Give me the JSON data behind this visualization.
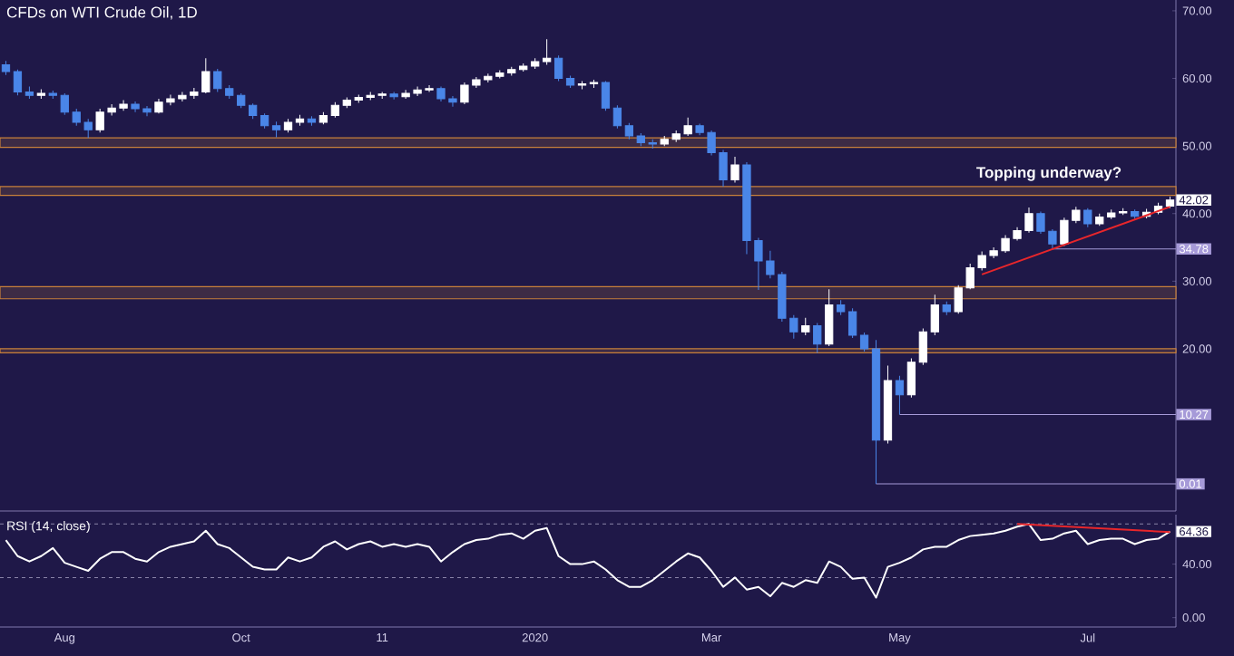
{
  "chart_data": [
    {
      "type": "candlestick",
      "title": "CFDs on WTI Crude Oil, 1D",
      "categories": [
        null,
        null,
        null,
        null,
        null,
        null,
        null,
        null,
        null,
        null,
        null,
        null,
        null,
        null,
        null,
        null,
        null,
        null,
        null,
        null,
        null,
        null,
        null,
        null,
        null,
        null,
        null,
        null,
        null,
        null,
        null,
        null,
        null,
        null,
        null,
        null,
        null,
        null,
        null,
        null,
        null,
        null,
        null,
        null,
        null,
        null,
        null,
        null,
        null,
        null,
        null,
        null,
        null,
        null,
        null,
        null,
        null,
        null,
        null,
        null,
        null,
        null,
        null,
        null,
        null,
        null,
        null,
        null,
        null,
        null,
        null,
        null,
        null,
        null,
        null,
        null,
        null,
        null,
        null,
        null,
        null,
        null,
        null,
        null,
        null,
        null,
        null,
        null,
        null,
        null,
        null,
        null,
        null,
        null,
        null,
        null,
        null,
        null,
        null,
        null
      ],
      "ohlc": [
        [
          62,
          62.6,
          60.5,
          61
        ],
        [
          61,
          61.3,
          57.5,
          58
        ],
        [
          58,
          58.8,
          57,
          57.5
        ],
        [
          57.5,
          58.4,
          57,
          57.8
        ],
        [
          57.8,
          58.2,
          57,
          57.5
        ],
        [
          57.5,
          57.8,
          54.6,
          55
        ],
        [
          55,
          55.5,
          53,
          53.5
        ],
        [
          53.5,
          54,
          51.2,
          52.4
        ],
        [
          52.4,
          55.5,
          52,
          55
        ],
        [
          55,
          56.2,
          54.5,
          55.6
        ],
        [
          55.6,
          56.8,
          55.2,
          56.2
        ],
        [
          56.2,
          56.6,
          55,
          55.5
        ],
        [
          55.5,
          55.9,
          54.4,
          55
        ],
        [
          55,
          57,
          54.8,
          56.5
        ],
        [
          56.5,
          57.6,
          56,
          57
        ],
        [
          57,
          58,
          56.6,
          57.5
        ],
        [
          57.5,
          58.6,
          57,
          58
        ],
        [
          58,
          63,
          57.8,
          61
        ],
        [
          61,
          61.4,
          58,
          58.5
        ],
        [
          58.5,
          59,
          57,
          57.5
        ],
        [
          57.5,
          57.8,
          55.6,
          56
        ],
        [
          56,
          56.3,
          54,
          54.5
        ],
        [
          54.5,
          54.8,
          52.6,
          53
        ],
        [
          53,
          53.6,
          51.3,
          52.4
        ],
        [
          52.4,
          54,
          52,
          53.5
        ],
        [
          53.5,
          54.6,
          53,
          54
        ],
        [
          54,
          54.4,
          53,
          53.5
        ],
        [
          53.5,
          55,
          53.2,
          54.5
        ],
        [
          54.5,
          56.5,
          54.2,
          56
        ],
        [
          56,
          57.2,
          55.6,
          56.8
        ],
        [
          56.8,
          57.6,
          56.4,
          57.2
        ],
        [
          57.2,
          58,
          56.8,
          57.5
        ],
        [
          57.5,
          58,
          57,
          57.7
        ],
        [
          57.7,
          58,
          56.9,
          57.3
        ],
        [
          57.3,
          58.3,
          57,
          57.8
        ],
        [
          57.8,
          58.8,
          57.4,
          58.3
        ],
        [
          58.3,
          59,
          58,
          58.5
        ],
        [
          58.5,
          58.8,
          56.6,
          57
        ],
        [
          57,
          57.4,
          55.8,
          56.5
        ],
        [
          56.5,
          59.4,
          56.2,
          59
        ],
        [
          59,
          60.2,
          58.6,
          59.8
        ],
        [
          59.8,
          60.7,
          59.4,
          60.3
        ],
        [
          60.3,
          61.2,
          60,
          60.8
        ],
        [
          60.8,
          61.7,
          60.4,
          61.3
        ],
        [
          61.3,
          62.2,
          61,
          61.8
        ],
        [
          61.8,
          63,
          61.4,
          62.5
        ],
        [
          62.5,
          65.8,
          62,
          63
        ],
        [
          63,
          63.4,
          59.6,
          60
        ],
        [
          60,
          60.4,
          58.6,
          59
        ],
        [
          59,
          59.6,
          58.4,
          59.2
        ],
        [
          59.2,
          59.8,
          58.6,
          59.4
        ],
        [
          59.4,
          59.6,
          55.2,
          55.6
        ],
        [
          55.6,
          56,
          52.6,
          53
        ],
        [
          53,
          53.4,
          51,
          51.5
        ],
        [
          51.5,
          51.9,
          50,
          50.5
        ],
        [
          50.5,
          51,
          49.6,
          50.3
        ],
        [
          50.3,
          51.5,
          50,
          51
        ],
        [
          51,
          52.3,
          50.6,
          51.8
        ],
        [
          51.8,
          54.2,
          51.5,
          53
        ],
        [
          53,
          53.3,
          51.6,
          52
        ],
        [
          52,
          52.3,
          48.6,
          49
        ],
        [
          49,
          49.4,
          44,
          45
        ],
        [
          45,
          48.4,
          44.6,
          47.2
        ],
        [
          47.2,
          47.6,
          34,
          36
        ],
        [
          36,
          36.4,
          28.7,
          33
        ],
        [
          33,
          34.5,
          30.4,
          31
        ],
        [
          31,
          31.4,
          24,
          24.5
        ],
        [
          24.5,
          25,
          21.5,
          22.5
        ],
        [
          22.5,
          24.6,
          22,
          23.4
        ],
        [
          23.4,
          23.8,
          19.4,
          20.7
        ],
        [
          20.7,
          28.8,
          20.4,
          26.5
        ],
        [
          26.5,
          27.2,
          25,
          25.5
        ],
        [
          25.5,
          26,
          21.6,
          22
        ],
        [
          22,
          22.4,
          19.6,
          20
        ],
        [
          20,
          21.3,
          0.01,
          6.5
        ],
        [
          6.5,
          17.5,
          6,
          15.3
        ],
        [
          15.3,
          16,
          10.27,
          13.2
        ],
        [
          13.2,
          18.6,
          12.8,
          18
        ],
        [
          18,
          23,
          17.6,
          22.5
        ],
        [
          22.5,
          28,
          22,
          26.5
        ],
        [
          26.5,
          27,
          25,
          25.5
        ],
        [
          25.5,
          29.4,
          25.2,
          29
        ],
        [
          29,
          32.6,
          28.8,
          32
        ],
        [
          32,
          34.4,
          31.6,
          33.8
        ],
        [
          33.8,
          35,
          33.4,
          34.5
        ],
        [
          34.5,
          36.8,
          34.2,
          36.3
        ],
        [
          36.3,
          38,
          36,
          37.5
        ],
        [
          37.5,
          40.9,
          37.2,
          40
        ],
        [
          40,
          40.3,
          37,
          37.4
        ],
        [
          37.4,
          37.7,
          34.78,
          35.5
        ],
        [
          35.5,
          39.4,
          35.2,
          39
        ],
        [
          39,
          41,
          38.6,
          40.5
        ],
        [
          40.5,
          40.8,
          38,
          38.5
        ],
        [
          38.5,
          40,
          38.2,
          39.5
        ],
        [
          39.5,
          40.6,
          39.2,
          40.1
        ],
        [
          40.1,
          40.8,
          39.8,
          40.3
        ],
        [
          40.3,
          40.6,
          39.2,
          39.6
        ],
        [
          39.6,
          40.7,
          39.3,
          40.2
        ],
        [
          40.2,
          41.6,
          39.9,
          41.1
        ],
        [
          41.1,
          42.5,
          40.8,
          42.02
        ]
      ],
      "colors": [
        "#4a86e8",
        "#4a86e8",
        "#4a86e8",
        "#ffffff",
        "#4a86e8",
        "#4a86e8",
        "#4a86e8",
        "#4a86e8",
        "#ffffff",
        "#ffffff",
        "#ffffff",
        "#4a86e8",
        "#4a86e8",
        "#ffffff",
        "#ffffff",
        "#ffffff",
        "#ffffff",
        "#ffffff",
        "#4a86e8",
        "#4a86e8",
        "#4a86e8",
        "#4a86e8",
        "#4a86e8",
        "#4a86e8",
        "#ffffff",
        "#ffffff",
        "#4a86e8",
        "#ffffff",
        "#ffffff",
        "#ffffff",
        "#ffffff",
        "#ffffff",
        "#ffffff",
        "#4a86e8",
        "#ffffff",
        "#ffffff",
        "#ffffff",
        "#4a86e8",
        "#4a86e8",
        "#ffffff",
        "#ffffff",
        "#ffffff",
        "#ffffff",
        "#ffffff",
        "#ffffff",
        "#ffffff",
        "#ffffff",
        "#4a86e8",
        "#4a86e8",
        "#ffffff",
        "#ffffff",
        "#4a86e8",
        "#4a86e8",
        "#4a86e8",
        "#4a86e8",
        "#4a86e8",
        "#ffffff",
        "#ffffff",
        "#ffffff",
        "#4a86e8",
        "#4a86e8",
        "#4a86e8",
        "#ffffff",
        "#4a86e8",
        "#4a86e8",
        "#4a86e8",
        "#4a86e8",
        "#4a86e8",
        "#ffffff",
        "#4a86e8",
        "#ffffff",
        "#4a86e8",
        "#4a86e8",
        "#4a86e8",
        "#4a86e8",
        "#ffffff",
        "#4a86e8",
        "#ffffff",
        "#ffffff",
        "#ffffff",
        "#4a86e8",
        "#ffffff",
        "#ffffff",
        "#ffffff",
        "#ffffff",
        "#ffffff",
        "#ffffff",
        "#ffffff",
        "#4a86e8",
        "#4a86e8",
        "#ffffff",
        "#ffffff",
        "#4a86e8",
        "#ffffff",
        "#ffffff",
        "#ffffff",
        "#4a86e8",
        "#ffffff",
        "#ffffff",
        "#ffffff"
      ],
      "series": [
        {
          "type": "line",
          "color": "#e8262b",
          "values": [
            null,
            null,
            null,
            null,
            null,
            null,
            null,
            null,
            null,
            null,
            null,
            null,
            null,
            null,
            null,
            null,
            null,
            null,
            null,
            null,
            null,
            null,
            null,
            null,
            null,
            null,
            null,
            null,
            null,
            null,
            null,
            null,
            null,
            null,
            null,
            null,
            null,
            null,
            null,
            null,
            null,
            null,
            null,
            null,
            null,
            null,
            null,
            null,
            null,
            null,
            null,
            null,
            null,
            null,
            null,
            null,
            null,
            null,
            null,
            null,
            null,
            null,
            null,
            null,
            null,
            null,
            null,
            null,
            null,
            null,
            null,
            null,
            null,
            null,
            null,
            null,
            null,
            null,
            null,
            null,
            null,
            null,
            null,
            31,
            null,
            null,
            null,
            null,
            null,
            null,
            null,
            null,
            null,
            null,
            null,
            null,
            null,
            null,
            null,
            41
          ]
        }
      ],
      "ylim": [
        -4,
        71.6
      ],
      "yticks": [
        {
          "value": 20,
          "label": "20.00"
        },
        {
          "value": 30,
          "label": "30.00"
        },
        {
          "value": 40,
          "label": "40.00"
        },
        {
          "value": 50,
          "label": "50.00"
        },
        {
          "value": 60,
          "label": "60.00"
        },
        {
          "value": 70,
          "label": "70.00"
        }
      ],
      "bands": [
        {
          "axis": "y",
          "from": 49.8,
          "to": 51.2,
          "color": "#c8803a"
        },
        {
          "axis": "y",
          "from": 42.7,
          "to": 44,
          "color": "#c8803a"
        },
        {
          "axis": "y",
          "from": 27.4,
          "to": 29.2,
          "color": "#c8803a"
        },
        {
          "axis": "y",
          "from": 19.4,
          "to": 20,
          "color": "#c8803a"
        }
      ],
      "ref_lines": [
        {
          "axis": "y",
          "value": 34.78,
          "label": "34.78",
          "color": "#a69ad8"
        },
        {
          "axis": "y",
          "value": 10.27,
          "label": "10.27",
          "color": "#a69ad8"
        },
        {
          "axis": "y",
          "value": 0.01,
          "label": "0.01",
          "color": "#a69ad8"
        }
      ],
      "annotations": [
        "Topping underway?",
        "42.02"
      ],
      "tick_labels": "y"
    },
    {
      "type": "line",
      "title": "RSI (14, close)",
      "categories": [
        null,
        null,
        null,
        null,
        null,
        "Aug",
        null,
        null,
        null,
        null,
        null,
        null,
        null,
        null,
        null,
        null,
        null,
        null,
        null,
        null,
        "Oct",
        null,
        null,
        null,
        null,
        null,
        null,
        null,
        null,
        null,
        null,
        null,
        "11",
        null,
        null,
        null,
        null,
        null,
        null,
        null,
        null,
        null,
        null,
        null,
        null,
        "2020",
        null,
        null,
        null,
        null,
        null,
        null,
        null,
        null,
        null,
        null,
        null,
        null,
        null,
        null,
        "Mar",
        null,
        null,
        null,
        null,
        null,
        null,
        null,
        null,
        null,
        null,
        null,
        null,
        null,
        null,
        null,
        "May",
        null,
        null,
        null,
        null,
        null,
        null,
        null,
        null,
        null,
        null,
        null,
        null,
        null,
        null,
        null,
        "Jul",
        null,
        null,
        null,
        null,
        null,
        null,
        null
      ],
      "series": [
        {
          "color": "#ffffff",
          "values": [
            58,
            46,
            42,
            46,
            52,
            41,
            38,
            35,
            44,
            49,
            49,
            44,
            42,
            49,
            53,
            55,
            57,
            65,
            55,
            52,
            45,
            38,
            36,
            36,
            45,
            42,
            45,
            53,
            57,
            51,
            55,
            57,
            53,
            55,
            53,
            55,
            53,
            42,
            49,
            55,
            58,
            59,
            62,
            63,
            59,
            65,
            67,
            46,
            40,
            40,
            42,
            36,
            28,
            23,
            23,
            28,
            35,
            42,
            48,
            45,
            35,
            23,
            30,
            21,
            23,
            16,
            26,
            23,
            28,
            26,
            42,
            38,
            29,
            30,
            15,
            38,
            41,
            45,
            51,
            53,
            53,
            58,
            61,
            62,
            63,
            65,
            68,
            70,
            58,
            59,
            63,
            65,
            55,
            58,
            59,
            59,
            55,
            58,
            59,
            64.36
          ]
        },
        {
          "color": "#e8262b",
          "values": [
            null,
            null,
            null,
            null,
            null,
            null,
            null,
            null,
            null,
            null,
            null,
            null,
            null,
            null,
            null,
            null,
            null,
            null,
            null,
            null,
            null,
            null,
            null,
            null,
            null,
            null,
            null,
            null,
            null,
            null,
            null,
            null,
            null,
            null,
            null,
            null,
            null,
            null,
            null,
            null,
            null,
            null,
            null,
            null,
            null,
            null,
            null,
            null,
            null,
            null,
            null,
            null,
            null,
            null,
            null,
            null,
            null,
            null,
            null,
            null,
            null,
            null,
            null,
            null,
            null,
            null,
            null,
            null,
            null,
            null,
            null,
            null,
            null,
            null,
            null,
            null,
            null,
            null,
            null,
            null,
            null,
            null,
            null,
            null,
            null,
            null,
            70,
            null,
            null,
            null,
            null,
            null,
            null,
            null,
            null,
            null,
            null,
            null,
            null,
            64
          ]
        }
      ],
      "ylim": [
        -7,
        77
      ],
      "yticks": [
        {
          "value": 0,
          "label": "0.00"
        },
        {
          "value": 40,
          "label": "40.00"
        }
      ],
      "ref_lines": [
        {
          "axis": "y",
          "value": 70,
          "line_style": "dashed",
          "color": "#8a84a8"
        },
        {
          "axis": "y",
          "value": 30,
          "line_style": "dashed",
          "color": "#8a84a8"
        }
      ],
      "annotations": [
        "64.36"
      ]
    }
  ]
}
